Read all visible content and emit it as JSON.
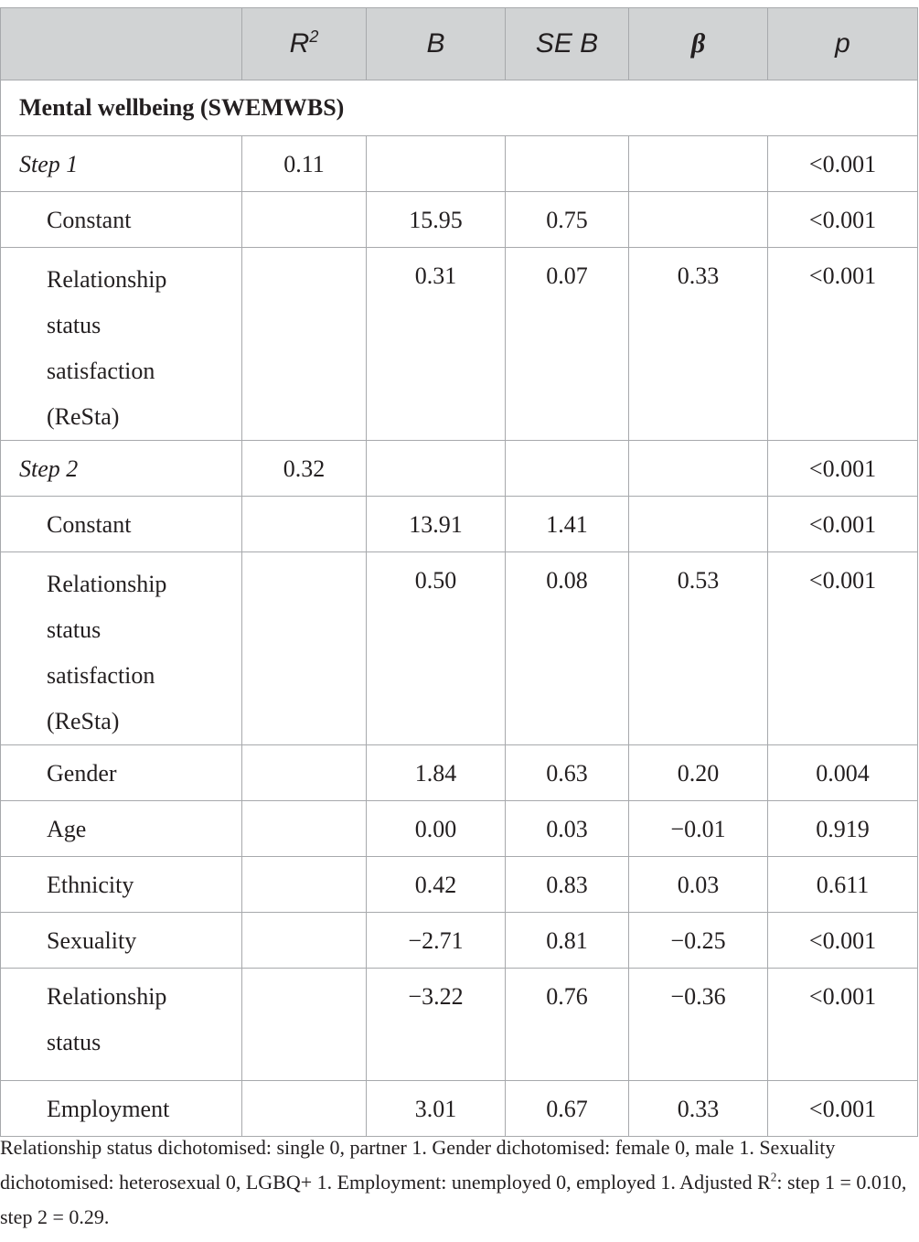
{
  "table": {
    "header": {
      "col0": "",
      "r2": "R",
      "r2_sup": "2",
      "b": "B",
      "se_b": "SE B",
      "beta": "β",
      "p": "p"
    },
    "section": "Mental wellbeing (SWEMWBS)",
    "step1": {
      "label": "Step 1",
      "r2": "0.11",
      "p": "<0.001"
    },
    "step1_rows": [
      {
        "label": "Constant",
        "b": "15.95",
        "se": "0.75",
        "beta": "",
        "p": "<0.001"
      },
      {
        "label": "Relationship status satisfaction (ReSta)",
        "b": "0.31",
        "se": "0.07",
        "beta": "0.33",
        "p": "<0.001"
      }
    ],
    "step2": {
      "label": "Step 2",
      "r2": "0.32",
      "p": "<0.001"
    },
    "step2_rows": [
      {
        "label": "Constant",
        "b": "13.91",
        "se": "1.41",
        "beta": "",
        "p": "<0.001"
      },
      {
        "label": "Relationship status satisfaction (ReSta)",
        "b": "0.50",
        "se": "0.08",
        "beta": "0.53",
        "p": "<0.001"
      },
      {
        "label": "Gender",
        "b": "1.84",
        "se": "0.63",
        "beta": "0.20",
        "p": "0.004"
      },
      {
        "label": "Age",
        "b": "0.00",
        "se": "0.03",
        "beta": "−0.01",
        "p": "0.919"
      },
      {
        "label": "Ethnicity",
        "b": "0.42",
        "se": "0.83",
        "beta": "0.03",
        "p": "0.611"
      },
      {
        "label": "Sexuality",
        "b": "−2.71",
        "se": "0.81",
        "beta": "−0.25",
        "p": "<0.001"
      },
      {
        "label": "Relationship status",
        "b": "−3.22",
        "se": "0.76",
        "beta": "−0.36",
        "p": "<0.001"
      },
      {
        "label": "Employment",
        "b": "3.01",
        "se": "0.67",
        "beta": "0.33",
        "p": "<0.001"
      }
    ]
  },
  "footnote": {
    "main": "Relationship status dichotomised: single 0, partner 1. Gender dichotomised: female 0, male 1. Sexuality dichotomised: heterosexual 0, LGBQ+ 1. Employment: unemployed 0, employed 1. Adjusted R",
    "sup": "2",
    "tail": ": step 1 = 0.010, step 2 = 0.29."
  }
}
